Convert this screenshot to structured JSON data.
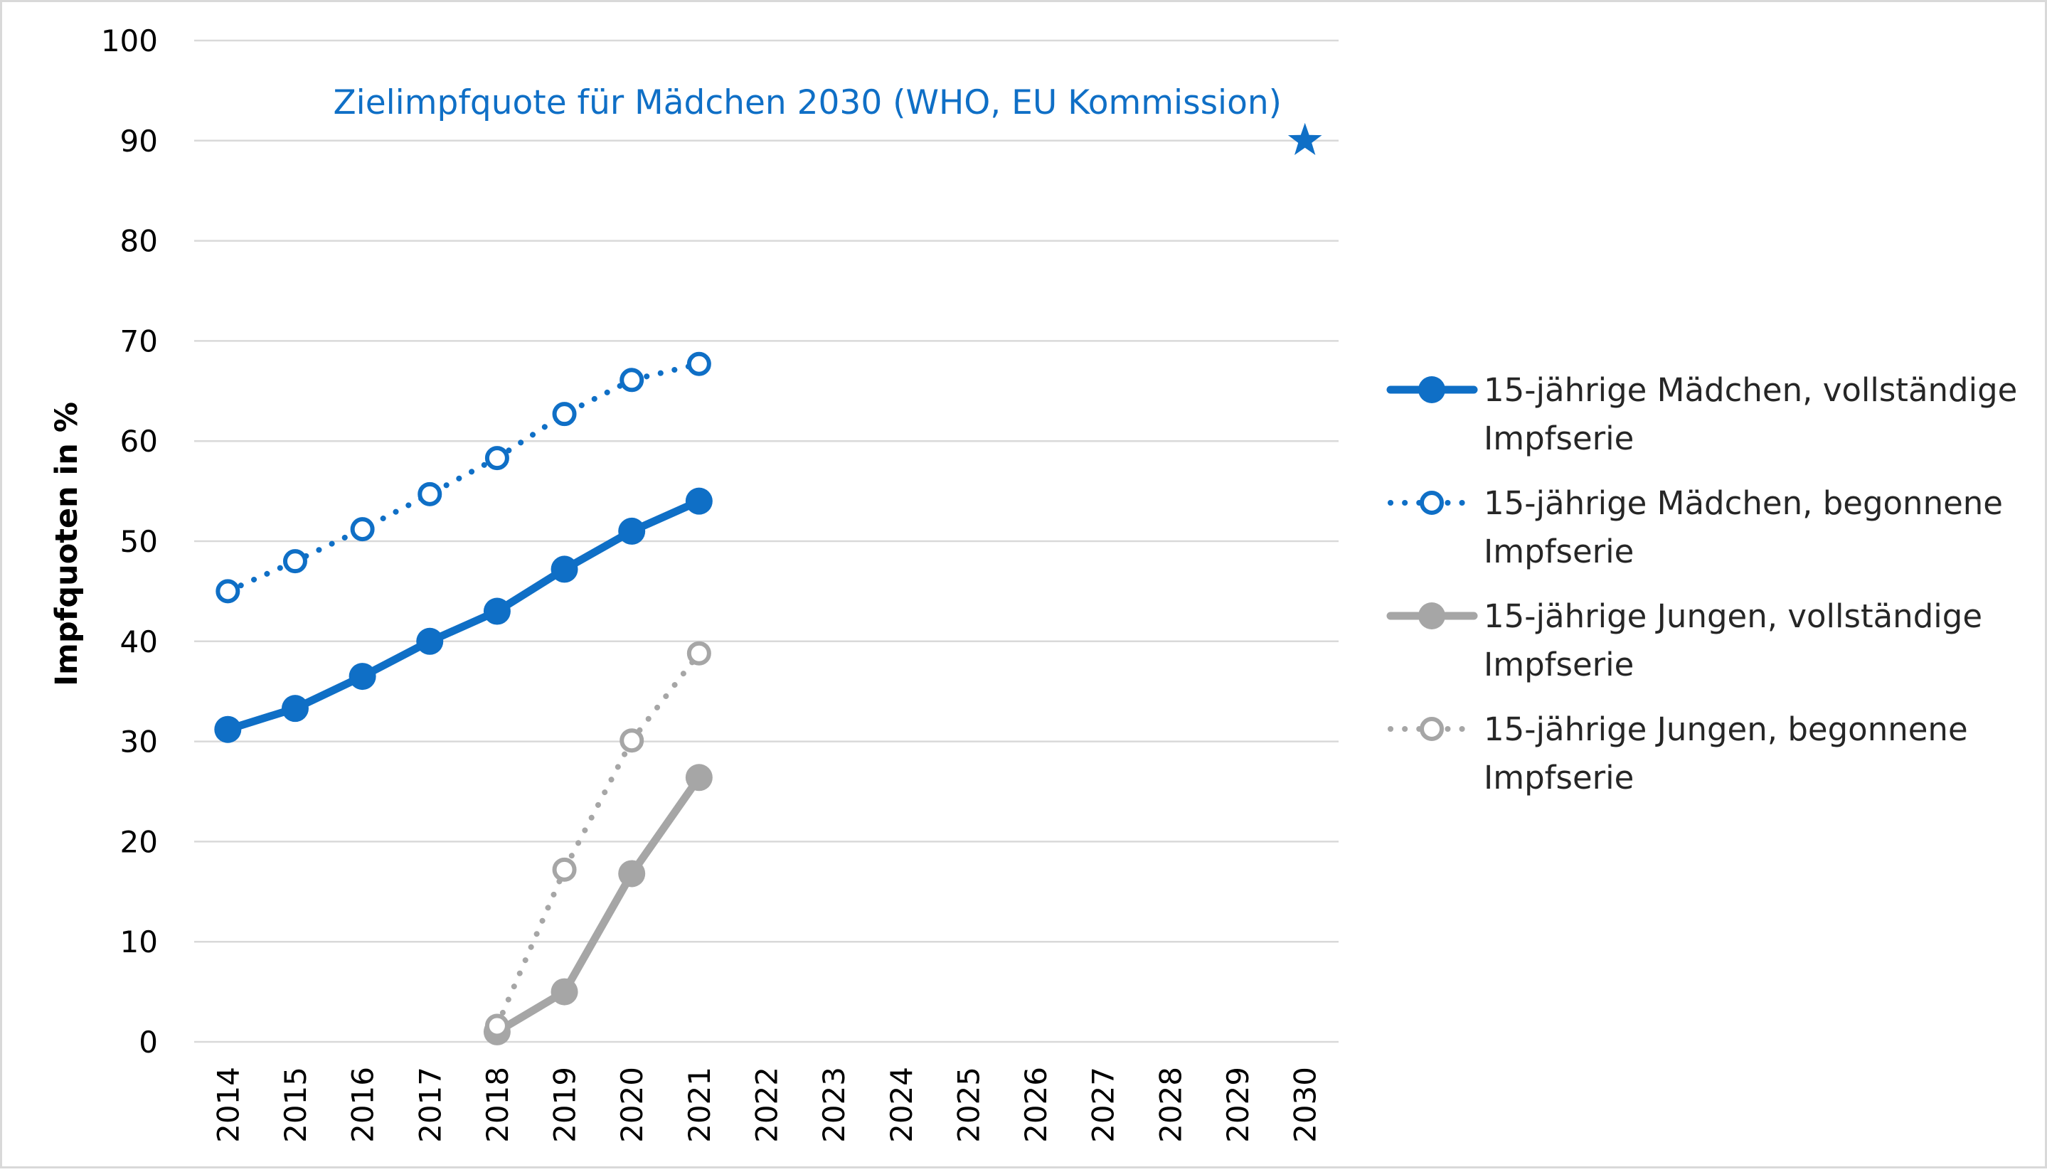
{
  "chart_data": {
    "type": "line",
    "title": "",
    "xlabel": "",
    "ylabel": "Impfquoten in %",
    "x": [
      "2014",
      "2015",
      "2016",
      "2017",
      "2018",
      "2019",
      "2020",
      "2021",
      "2022",
      "2023",
      "2024",
      "2025",
      "2026",
      "2027",
      "2028",
      "2029",
      "2030"
    ],
    "ylim": [
      0,
      100
    ],
    "yticks": [
      0,
      10,
      20,
      30,
      40,
      50,
      60,
      70,
      80,
      90,
      100
    ],
    "grid": true,
    "legend_position": "right",
    "series": [
      {
        "name": "15-jährige Mädchen, vollständige Impfserie",
        "legend_lines": [
          "15-jährige Mädchen, vollständige",
          "Impfserie"
        ],
        "color": "#0F6FC6",
        "style": "solid",
        "marker": "filled-circle",
        "values": [
          31.2,
          33.3,
          36.5,
          40.0,
          43.0,
          47.2,
          51.0,
          54.0,
          null,
          null,
          null,
          null,
          null,
          null,
          null,
          null,
          null
        ]
      },
      {
        "name": "15-jährige Mädchen, begonnene Impfserie",
        "legend_lines": [
          "15-jährige Mädchen, begonnene",
          "Impfserie"
        ],
        "color": "#0F6FC6",
        "style": "dotted",
        "marker": "open-circle",
        "values": [
          45.0,
          48.0,
          51.2,
          54.7,
          58.3,
          62.7,
          66.1,
          67.7,
          null,
          null,
          null,
          null,
          null,
          null,
          null,
          null,
          null
        ]
      },
      {
        "name": "15-jährige Jungen, vollständige Impfserie",
        "legend_lines": [
          "15-jährige Jungen, vollständige",
          "Impfserie"
        ],
        "color": "#A6A6A6",
        "style": "solid",
        "marker": "filled-circle",
        "values": [
          null,
          null,
          null,
          null,
          1.0,
          5.0,
          16.8,
          26.4,
          null,
          null,
          null,
          null,
          null,
          null,
          null,
          null,
          null
        ]
      },
      {
        "name": "15-jährige Jungen, begonnene Impfserie",
        "legend_lines": [
          "15-jährige Jungen, begonnene",
          "Impfserie"
        ],
        "color": "#A6A6A6",
        "style": "dotted",
        "marker": "open-circle",
        "values": [
          null,
          null,
          null,
          null,
          1.6,
          17.2,
          30.1,
          38.8,
          null,
          null,
          null,
          null,
          null,
          null,
          null,
          null,
          null
        ]
      }
    ],
    "annotations": [
      {
        "text": "Zielimpfquote für Mädchen 2030 (WHO, EU Kommission)",
        "x": "2030",
        "y": 90,
        "marker": "star",
        "color": "#0F6FC6"
      }
    ]
  }
}
